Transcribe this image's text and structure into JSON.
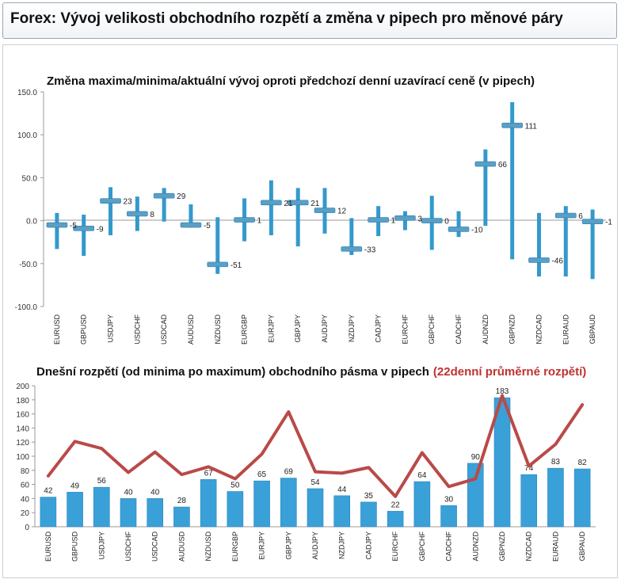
{
  "header": {
    "title": "Forex: Vývoj velikosti obchodního rozpětí a změna v pipech pro měnové páry"
  },
  "chart_data": [
    {
      "type": "range",
      "title": "Změna maxima/minima/aktuální vývoj oproti předchozí denní uzavírací ceně (v pipech)",
      "categories": [
        "EURUSD",
        "GBPUSD",
        "USDJPY",
        "USDCHF",
        "USDCAD",
        "AUDUSD",
        "NZDUSD",
        "EURGBP",
        "EURJPY",
        "GBPJPY",
        "AUDJPY",
        "NZDJPY",
        "CADJPY",
        "EURCHF",
        "GBPCHF",
        "CADCHF",
        "AUDNZD",
        "GBPNZD",
        "NZDCAD",
        "EURAUD",
        "GBPAUD"
      ],
      "high": [
        9,
        7,
        39,
        28,
        38,
        19,
        4,
        26,
        47,
        38,
        38,
        3,
        17,
        11,
        29,
        11,
        83,
        138,
        9,
        17,
        13
      ],
      "low": [
        -33,
        -41,
        -17,
        -12,
        -1,
        -8,
        -62,
        -24,
        -17,
        -30,
        -15,
        -40,
        -18,
        -11,
        -34,
        -19,
        -6,
        -45,
        -65,
        -65,
        -68
      ],
      "current": [
        -5,
        -9,
        23,
        8,
        29,
        -5,
        -51,
        1,
        21,
        21,
        12,
        -33,
        1,
        3,
        0,
        -10,
        66,
        111,
        -46,
        6,
        -1
      ],
      "current_labels": [
        "-5",
        "-9",
        "23",
        "8",
        "29",
        "-5",
        "-51",
        "1",
        "21",
        "21",
        "12",
        "-33",
        "1",
        "3",
        "0",
        "-10",
        "66",
        "111",
        "-46",
        "6",
        "-1"
      ],
      "ylim": [
        -100,
        150
      ],
      "yticks": [
        "150.0",
        "100.0",
        "50.0",
        "0.0",
        "-50.0",
        "-100.0"
      ],
      "grid": false,
      "colors": {
        "bar": "#3399cc",
        "marker": "#5a9fc5"
      }
    },
    {
      "type": "bar+line",
      "title": "Dnešní rozpětí (od minima po maximum) obchodního pásma v pipech",
      "title_suffix": "(22denní průměrné rozpětí)",
      "categories": [
        "EURUSD",
        "GBPUSD",
        "USDJPY",
        "USDCHF",
        "USDCAD",
        "AUDUSD",
        "NZDUSD",
        "EURGBP",
        "EURJPY",
        "GBPJPY",
        "AUDJPY",
        "NZDJPY",
        "CADJPY",
        "EURCHF",
        "GBPCHF",
        "CADCHF",
        "AUDNZD",
        "GBPNZD",
        "NZDCAD",
        "EURAUD",
        "GBPAUD"
      ],
      "values": [
        42,
        49,
        56,
        40,
        40,
        28,
        67,
        50,
        65,
        69,
        54,
        44,
        35,
        22,
        64,
        30,
        90,
        183,
        74,
        83,
        82
      ],
      "value_labels": [
        "42",
        "49",
        "56",
        "40",
        "40",
        "28",
        "67",
        "50",
        "65",
        "69",
        "54",
        "44",
        "35",
        "22",
        "64",
        "30",
        "90",
        "183",
        "74",
        "83",
        "82"
      ],
      "average_22d": [
        72,
        121,
        111,
        77,
        106,
        74,
        85,
        68,
        103,
        163,
        78,
        76,
        84,
        43,
        105,
        57,
        68,
        186,
        86,
        117,
        173
      ],
      "ylim": [
        0,
        200
      ],
      "yticks": [
        "200",
        "180",
        "160",
        "140",
        "120",
        "100",
        "80",
        "60",
        "40",
        "20",
        "0"
      ],
      "grid": false,
      "colors": {
        "bar": "#3aa0d8",
        "line": "#b94a48",
        "suffix": "#c0322f"
      }
    }
  ]
}
